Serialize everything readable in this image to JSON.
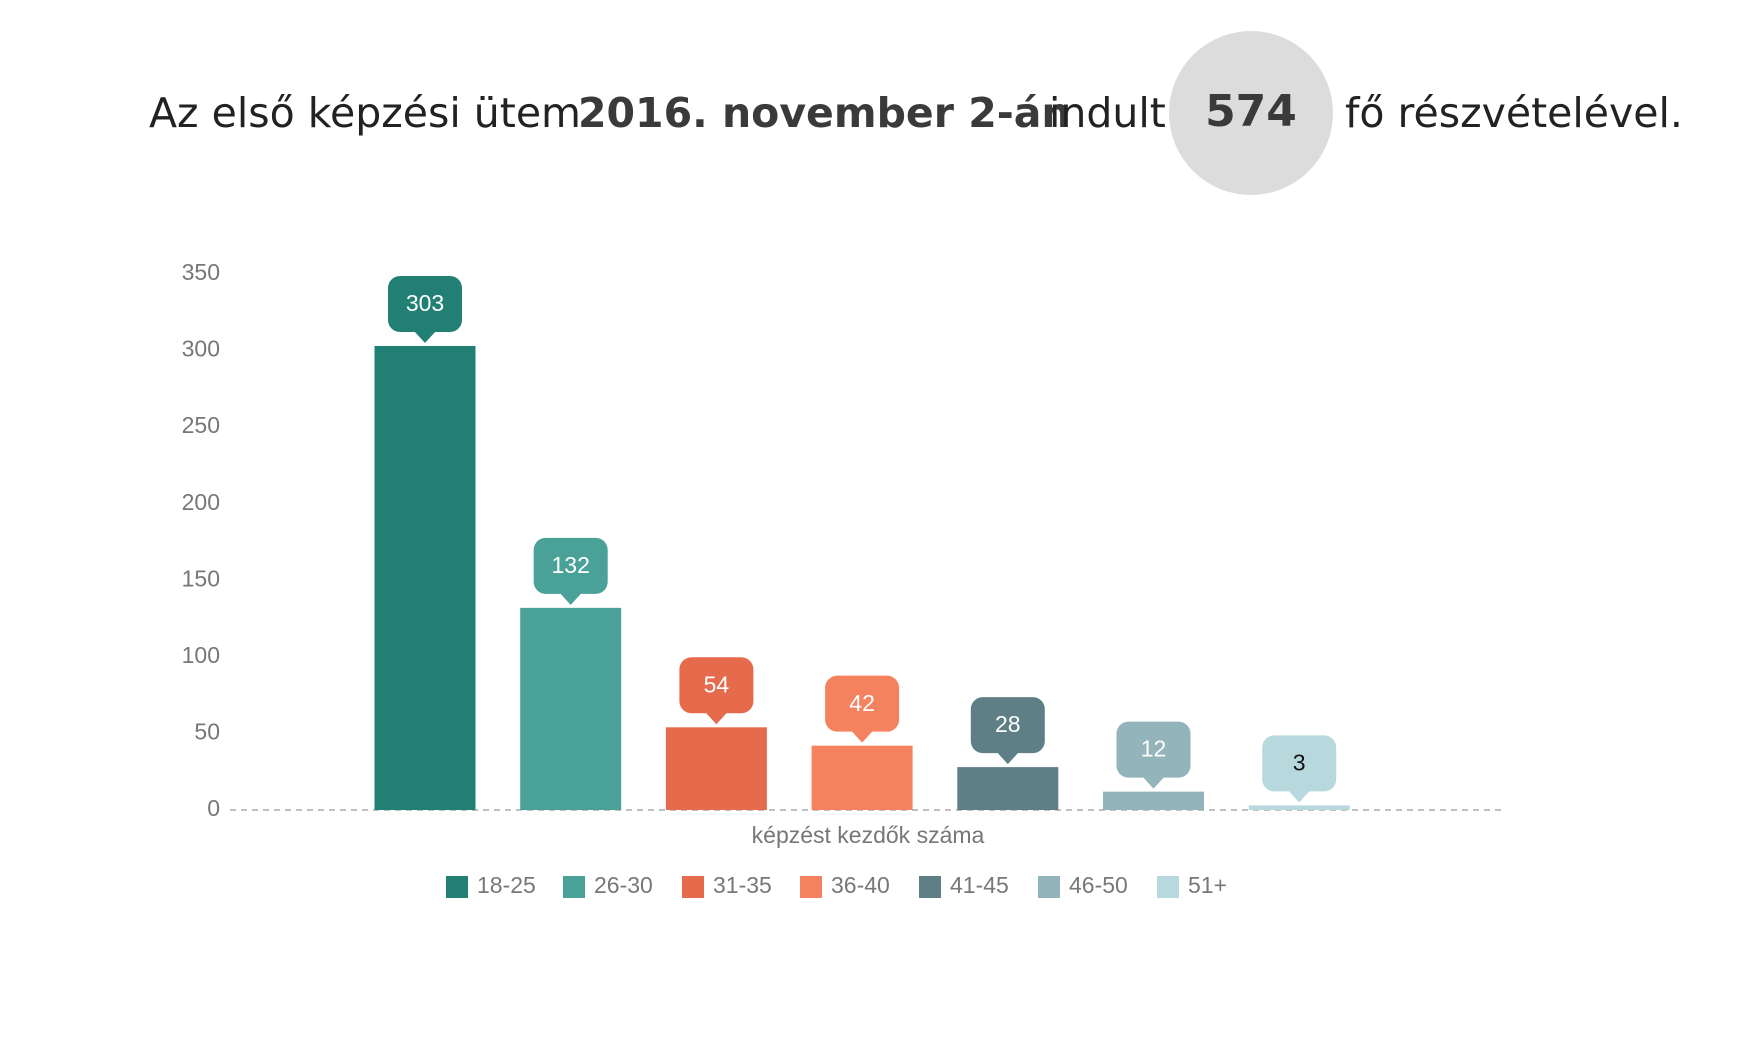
{
  "header": {
    "intro": "Az első képzési ütem",
    "date": "2016. november 2-án",
    "verb": "indult",
    "count": "574",
    "outro": "fő részvételével."
  },
  "chart_data": {
    "type": "bar",
    "categories": [
      "képzést kezdők száma"
    ],
    "series": [
      {
        "name": "18-25",
        "color": "#227f74",
        "values": [
          303
        ]
      },
      {
        "name": "26-30",
        "color": "#4aa197",
        "values": [
          132
        ]
      },
      {
        "name": "31-35",
        "color": "#e56b4c",
        "values": [
          54
        ]
      },
      {
        "name": "36-40",
        "color": "#f5825f",
        "values": [
          42
        ]
      },
      {
        "name": "41-45",
        "color": "#5e7f85",
        "values": [
          28
        ]
      },
      {
        "name": "46-50",
        "color": "#93b4ba",
        "values": [
          12
        ]
      },
      {
        "name": "51+",
        "color": "#b7d8dd",
        "values": [
          3
        ]
      }
    ],
    "ylim": [
      0,
      350
    ],
    "yticks": [
      0,
      50,
      100,
      150,
      200,
      250,
      300,
      350
    ],
    "legend": "bottom"
  }
}
